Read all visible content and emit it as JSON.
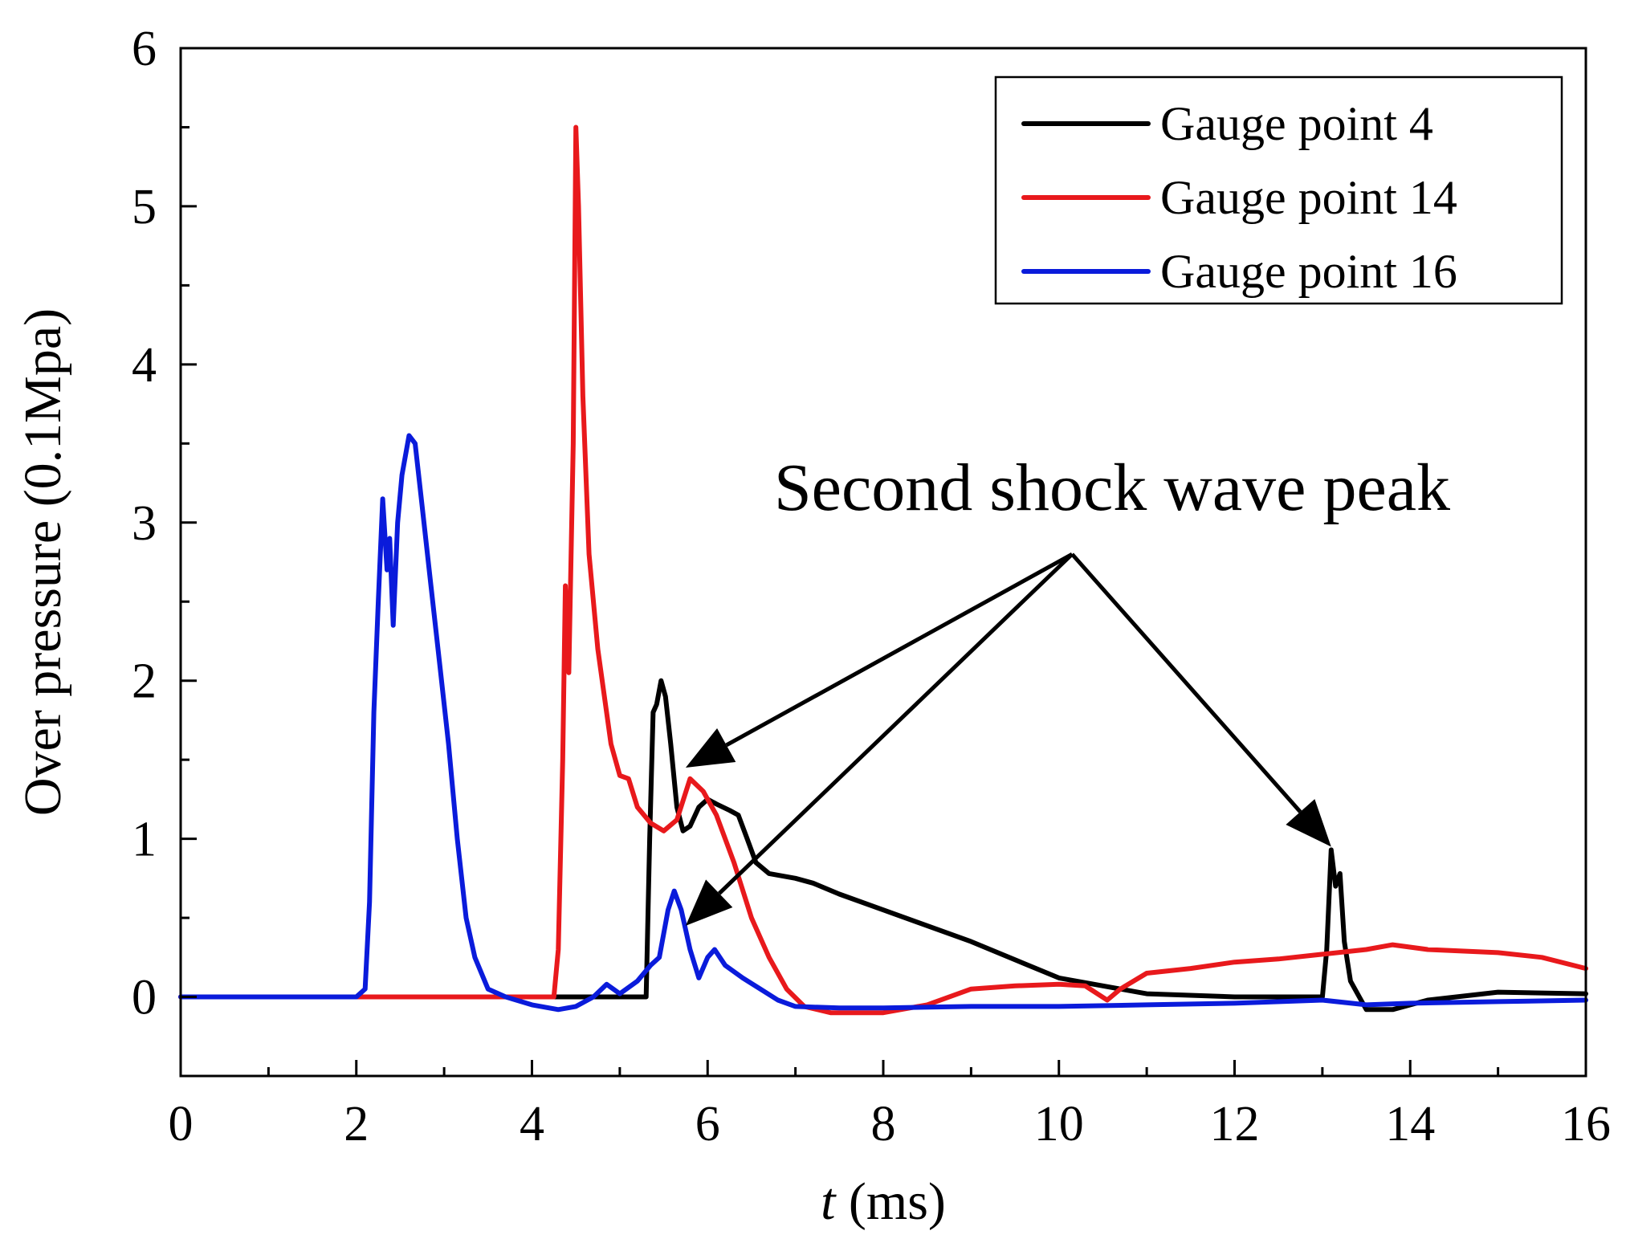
{
  "chart_data": {
    "type": "line",
    "title": "",
    "xlabel_var": "t",
    "xlabel_unit": " (ms)",
    "ylabel": "Over pressure (0.1Mpa)",
    "xlim": [
      0,
      16
    ],
    "ylim": [
      -0.5,
      6
    ],
    "x_ticks": [
      0,
      2,
      4,
      6,
      8,
      10,
      12,
      14,
      16
    ],
    "x_tick_labels": [
      "0",
      "2",
      "4",
      "6",
      "8",
      "10",
      "12",
      "14",
      "16"
    ],
    "y_ticks": [
      0,
      1,
      2,
      3,
      4,
      5,
      6
    ],
    "y_tick_labels": [
      "0",
      "1",
      "2",
      "3",
      "4",
      "5",
      "6"
    ],
    "grid": false,
    "legend_position": "top-right",
    "series": [
      {
        "name": "Gauge point 4",
        "color": "#000000",
        "points": [
          [
            0,
            0
          ],
          [
            5.3,
            0
          ],
          [
            5.34,
            1.0
          ],
          [
            5.38,
            1.8
          ],
          [
            5.42,
            1.85
          ],
          [
            5.47,
            2.0
          ],
          [
            5.52,
            1.9
          ],
          [
            5.58,
            1.6
          ],
          [
            5.65,
            1.2
          ],
          [
            5.72,
            1.05
          ],
          [
            5.8,
            1.08
          ],
          [
            5.9,
            1.2
          ],
          [
            6.0,
            1.25
          ],
          [
            6.1,
            1.22
          ],
          [
            6.25,
            1.18
          ],
          [
            6.35,
            1.15
          ],
          [
            6.45,
            1.0
          ],
          [
            6.55,
            0.85
          ],
          [
            6.7,
            0.78
          ],
          [
            7.0,
            0.75
          ],
          [
            7.2,
            0.72
          ],
          [
            7.5,
            0.65
          ],
          [
            8.0,
            0.55
          ],
          [
            9.0,
            0.35
          ],
          [
            10.0,
            0.12
          ],
          [
            11.0,
            0.02
          ],
          [
            12.0,
            0.0
          ],
          [
            13.0,
            0.0
          ],
          [
            13.05,
            0.3
          ],
          [
            13.1,
            0.93
          ],
          [
            13.15,
            0.7
          ],
          [
            13.2,
            0.78
          ],
          [
            13.25,
            0.35
          ],
          [
            13.32,
            0.1
          ],
          [
            13.5,
            -0.08
          ],
          [
            13.8,
            -0.08
          ],
          [
            14.2,
            -0.02
          ],
          [
            15.0,
            0.03
          ],
          [
            16.0,
            0.02
          ]
        ]
      },
      {
        "name": "Gauge point 14",
        "color": "#e8191c",
        "points": [
          [
            0,
            0
          ],
          [
            4.25,
            0
          ],
          [
            4.3,
            0.3
          ],
          [
            4.35,
            1.5
          ],
          [
            4.38,
            2.6
          ],
          [
            4.42,
            2.05
          ],
          [
            4.47,
            3.5
          ],
          [
            4.5,
            5.5
          ],
          [
            4.53,
            5.0
          ],
          [
            4.58,
            3.8
          ],
          [
            4.65,
            2.8
          ],
          [
            4.75,
            2.2
          ],
          [
            4.9,
            1.6
          ],
          [
            5.0,
            1.4
          ],
          [
            5.1,
            1.38
          ],
          [
            5.2,
            1.2
          ],
          [
            5.35,
            1.1
          ],
          [
            5.5,
            1.05
          ],
          [
            5.65,
            1.12
          ],
          [
            5.8,
            1.38
          ],
          [
            5.95,
            1.3
          ],
          [
            6.1,
            1.15
          ],
          [
            6.3,
            0.85
          ],
          [
            6.5,
            0.5
          ],
          [
            6.7,
            0.25
          ],
          [
            6.9,
            0.05
          ],
          [
            7.1,
            -0.06
          ],
          [
            7.4,
            -0.1
          ],
          [
            8.0,
            -0.1
          ],
          [
            8.5,
            -0.05
          ],
          [
            9.0,
            0.05
          ],
          [
            9.5,
            0.07
          ],
          [
            10.0,
            0.08
          ],
          [
            10.3,
            0.07
          ],
          [
            10.55,
            -0.02
          ],
          [
            10.7,
            0.05
          ],
          [
            11.0,
            0.15
          ],
          [
            11.5,
            0.18
          ],
          [
            12.0,
            0.22
          ],
          [
            12.5,
            0.24
          ],
          [
            13.0,
            0.27
          ],
          [
            13.5,
            0.3
          ],
          [
            13.8,
            0.33
          ],
          [
            14.2,
            0.3
          ],
          [
            15.0,
            0.28
          ],
          [
            15.5,
            0.25
          ],
          [
            16.0,
            0.18
          ]
        ]
      },
      {
        "name": "Gauge point 16",
        "color": "#0a1bdb",
        "points": [
          [
            0,
            0
          ],
          [
            2.0,
            0
          ],
          [
            2.1,
            0.05
          ],
          [
            2.15,
            0.6
          ],
          [
            2.2,
            1.8
          ],
          [
            2.25,
            2.5
          ],
          [
            2.3,
            3.15
          ],
          [
            2.35,
            2.7
          ],
          [
            2.38,
            2.9
          ],
          [
            2.42,
            2.35
          ],
          [
            2.47,
            3.0
          ],
          [
            2.52,
            3.3
          ],
          [
            2.6,
            3.55
          ],
          [
            2.67,
            3.5
          ],
          [
            2.75,
            3.1
          ],
          [
            2.85,
            2.6
          ],
          [
            2.95,
            2.1
          ],
          [
            3.05,
            1.6
          ],
          [
            3.15,
            1.0
          ],
          [
            3.25,
            0.5
          ],
          [
            3.35,
            0.25
          ],
          [
            3.5,
            0.05
          ],
          [
            3.7,
            0.0
          ],
          [
            4.0,
            -0.05
          ],
          [
            4.3,
            -0.08
          ],
          [
            4.5,
            -0.06
          ],
          [
            4.7,
            0.0
          ],
          [
            4.85,
            0.08
          ],
          [
            5.0,
            0.02
          ],
          [
            5.2,
            0.1
          ],
          [
            5.35,
            0.2
          ],
          [
            5.45,
            0.25
          ],
          [
            5.55,
            0.55
          ],
          [
            5.62,
            0.67
          ],
          [
            5.7,
            0.55
          ],
          [
            5.8,
            0.3
          ],
          [
            5.9,
            0.12
          ],
          [
            6.0,
            0.25
          ],
          [
            6.08,
            0.3
          ],
          [
            6.2,
            0.2
          ],
          [
            6.4,
            0.12
          ],
          [
            6.6,
            0.05
          ],
          [
            6.8,
            -0.02
          ],
          [
            7.0,
            -0.06
          ],
          [
            7.5,
            -0.07
          ],
          [
            8.0,
            -0.07
          ],
          [
            9.0,
            -0.06
          ],
          [
            10.0,
            -0.06
          ],
          [
            11.0,
            -0.05
          ],
          [
            12.0,
            -0.04
          ],
          [
            13.0,
            -0.02
          ],
          [
            13.5,
            -0.05
          ],
          [
            14.0,
            -0.04
          ],
          [
            15.0,
            -0.03
          ],
          [
            16.0,
            -0.02
          ]
        ]
      }
    ],
    "annotation": {
      "text": "Second shock wave peak",
      "origin": [
        10.15,
        2.8
      ],
      "arrow_targets": [
        [
          5.75,
          1.45
        ],
        [
          5.75,
          0.45
        ],
        [
          13.1,
          0.95
        ]
      ]
    }
  }
}
